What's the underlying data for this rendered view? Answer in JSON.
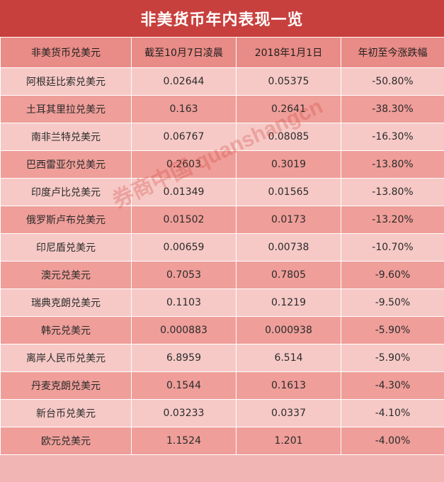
{
  "title": "非美货币年内表现一览",
  "columns": [
    "非美货币兑美元",
    "截至10月7日凌晨",
    "2018年1月1日",
    "年初至今涨跌幅"
  ],
  "rows": [
    [
      "阿根廷比索兑美元",
      "0.02644",
      "0.05375",
      "-50.80%"
    ],
    [
      "土耳其里拉兑美元",
      "0.163",
      "0.2641",
      "-38.30%"
    ],
    [
      "南非兰特兑美元",
      "0.06767",
      "0.08085",
      "-16.30%"
    ],
    [
      "巴西雷亚尔兑美元",
      "0.2603",
      "0.3019",
      "-13.80%"
    ],
    [
      "印度卢比兑美元",
      "0.01349",
      "0.01565",
      "-13.80%"
    ],
    [
      "俄罗斯卢布兑美元",
      "0.01502",
      "0.0173",
      "-13.20%"
    ],
    [
      "印尼盾兑美元",
      "0.00659",
      "0.00738",
      "-10.70%"
    ],
    [
      "澳元兑美元",
      "0.7053",
      "0.7805",
      "-9.60%"
    ],
    [
      "瑞典克朗兑美元",
      "0.1103",
      "0.1219",
      "-9.50%"
    ],
    [
      "韩元兑美元",
      "0.000883",
      "0.000938",
      "-5.90%"
    ],
    [
      "离岸人民币兑美元",
      "6.8959",
      "6.514",
      "-5.90%"
    ],
    [
      "丹麦克朗兑美元",
      "0.1544",
      "0.1613",
      "-4.30%"
    ],
    [
      "新台币兑美元",
      "0.03233",
      "0.0337",
      "-4.10%"
    ],
    [
      "欧元兑美元",
      "1.1524",
      "1.201",
      "-4.00%"
    ]
  ],
  "watermark": "券商中国 quanshangcn",
  "colors": {
    "title_bg": "#c8403d",
    "header_bg": "#e98b86",
    "row_light": "#f6c9c6",
    "row_dark": "#ef9e99"
  }
}
